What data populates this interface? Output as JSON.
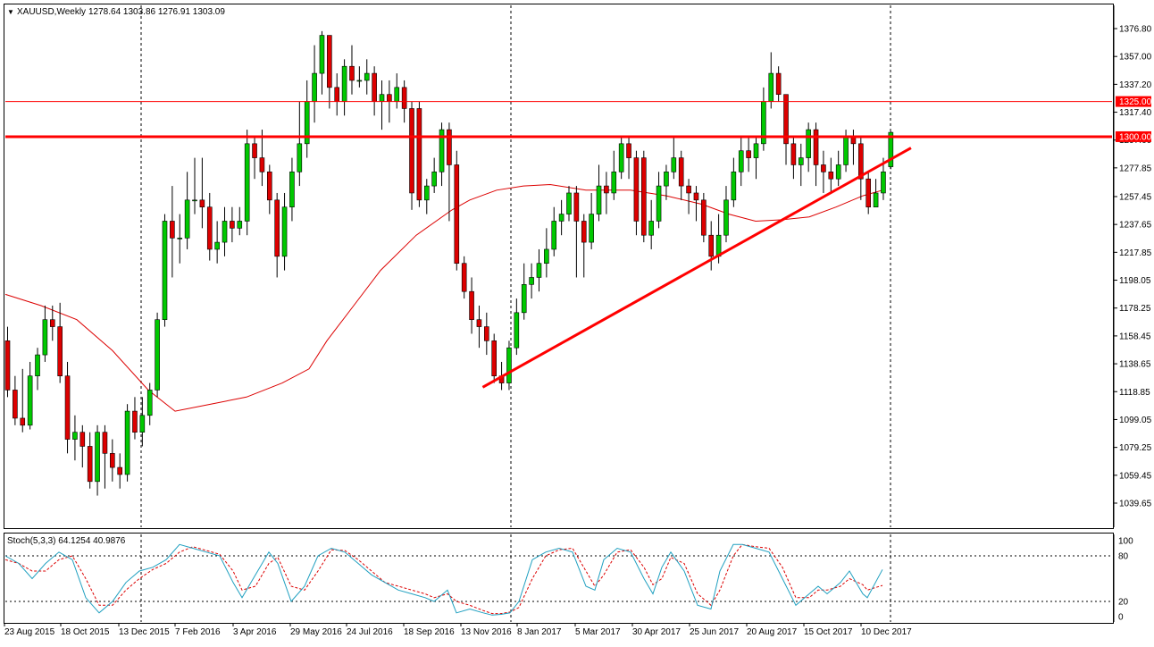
{
  "header": {
    "symbol_tf": "XAUUSD,Weekly",
    "ohlc": "1278.64 1303.86 1276.91 1303.09",
    "dropdown_glyph": "▼"
  },
  "price_panel": {
    "y_ticks": [
      "1376.80",
      "1357.00",
      "1337.20",
      "1317.40",
      "1297.60",
      "1277.85",
      "1257.45",
      "1237.65",
      "1217.85",
      "1198.05",
      "1178.25",
      "1158.45",
      "1138.65",
      "1118.85",
      "1099.05",
      "1079.25",
      "1059.45",
      "1039.65"
    ],
    "level_labels": {
      "upper": "1325.00",
      "main": "1300.00"
    }
  },
  "stoch_panel": {
    "title": "Stoch(5,3,3) 64.1254 40.9876",
    "y_ticks": [
      "100",
      "80",
      "20",
      "0"
    ]
  },
  "time_axis": {
    "labels": [
      "23 Aug 2015",
      "18 Oct 2015",
      "13 Dec 2015",
      "7 Feb 2016",
      "3 Apr 2016",
      "29 May 2016",
      "24 Jul 2016",
      "18 Sep 2016",
      "13 Nov 2016",
      "8 Jan 2017",
      "5 Mar 2017",
      "30 Apr 2017",
      "25 Jun 2017",
      "20 Aug 2017",
      "15 Oct 2017",
      "10 Dec 2017"
    ]
  },
  "colors": {
    "bull": "#00c800",
    "bear": "#dc0000",
    "outline": "#000000",
    "levels": "#ff0000",
    "ma": "#dc0000",
    "stoch_main": "#20a0c0",
    "stoch_signal": "#dc0000",
    "grid": "#000000",
    "axis_text": "#000000",
    "label_bg": "#ff0000",
    "label_text": "#ffffff"
  },
  "chart_data": {
    "type": "candlestick",
    "timeframe": "weekly",
    "x_range": [
      "2015-08-23",
      "2017-12-24"
    ],
    "y_range": [
      1039.65,
      1376.8
    ],
    "horizontal_levels": [
      1325.0,
      1300.0
    ],
    "trendline": {
      "from": {
        "date": "2016-12-04",
        "price": 1122
      },
      "to": {
        "date": "2018-01-28",
        "price": 1292
      }
    },
    "candles": [
      [
        1155,
        1120,
        1165,
        1115
      ],
      [
        1120,
        1100,
        1130,
        1095
      ],
      [
        1100,
        1095,
        1135,
        1090
      ],
      [
        1095,
        1130,
        1140,
        1092
      ],
      [
        1130,
        1145,
        1150,
        1120
      ],
      [
        1145,
        1170,
        1180,
        1140
      ],
      [
        1170,
        1165,
        1180,
        1155
      ],
      [
        1165,
        1130,
        1182,
        1125
      ],
      [
        1130,
        1085,
        1140,
        1075
      ],
      [
        1085,
        1090,
        1102,
        1070
      ],
      [
        1090,
        1080,
        1095,
        1065
      ],
      [
        1080,
        1055,
        1090,
        1050
      ],
      [
        1055,
        1090,
        1095,
        1045
      ],
      [
        1090,
        1075,
        1095,
        1050
      ],
      [
        1075,
        1065,
        1085,
        1055
      ],
      [
        1065,
        1060,
        1075,
        1050
      ],
      [
        1060,
        1105,
        1110,
        1055
      ],
      [
        1105,
        1090,
        1115,
        1085
      ],
      [
        1090,
        1102,
        1115,
        1080
      ],
      [
        1102,
        1120,
        1125,
        1095
      ],
      [
        1120,
        1170,
        1175,
        1115
      ],
      [
        1170,
        1240,
        1245,
        1165
      ],
      [
        1240,
        1228,
        1265,
        1200
      ],
      [
        1228,
        1228,
        1245,
        1210
      ],
      [
        1228,
        1255,
        1275,
        1220
      ],
      [
        1255,
        1255,
        1285,
        1245
      ],
      [
        1255,
        1250,
        1285,
        1235
      ],
      [
        1250,
        1220,
        1260,
        1212
      ],
      [
        1220,
        1225,
        1240,
        1210
      ],
      [
        1225,
        1240,
        1250,
        1215
      ],
      [
        1240,
        1235,
        1250,
        1225
      ],
      [
        1235,
        1240,
        1250,
        1230
      ],
      [
        1240,
        1295,
        1305,
        1230
      ],
      [
        1295,
        1285,
        1300,
        1270
      ],
      [
        1285,
        1275,
        1305,
        1265
      ],
      [
        1275,
        1255,
        1280,
        1245
      ],
      [
        1255,
        1215,
        1260,
        1200
      ],
      [
        1215,
        1250,
        1260,
        1205
      ],
      [
        1250,
        1275,
        1285,
        1240
      ],
      [
        1275,
        1295,
        1325,
        1265
      ],
      [
        1295,
        1325,
        1340,
        1285
      ],
      [
        1325,
        1345,
        1365,
        1310
      ],
      [
        1345,
        1372,
        1375,
        1330
      ],
      [
        1372,
        1335,
        1372,
        1320
      ],
      [
        1335,
        1325,
        1345,
        1315
      ],
      [
        1325,
        1350,
        1355,
        1315
      ],
      [
        1350,
        1340,
        1365,
        1330
      ],
      [
        1340,
        1340,
        1350,
        1335
      ],
      [
        1340,
        1345,
        1355,
        1330
      ],
      [
        1345,
        1325,
        1350,
        1315
      ],
      [
        1325,
        1330,
        1340,
        1305
      ],
      [
        1330,
        1325,
        1340,
        1310
      ],
      [
        1325,
        1335,
        1345,
        1320
      ],
      [
        1335,
        1320,
        1340,
        1310
      ],
      [
        1320,
        1260,
        1325,
        1248
      ],
      [
        1320,
        1255,
        1325,
        1250
      ],
      [
        1255,
        1265,
        1270,
        1245
      ],
      [
        1265,
        1275,
        1285,
        1260
      ],
      [
        1275,
        1305,
        1310,
        1265
      ],
      [
        1305,
        1280,
        1310,
        1240
      ],
      [
        1280,
        1210,
        1290,
        1205
      ],
      [
        1210,
        1190,
        1215,
        1185
      ],
      [
        1190,
        1170,
        1200,
        1160
      ],
      [
        1170,
        1165,
        1180,
        1150
      ],
      [
        1165,
        1155,
        1175,
        1145
      ],
      [
        1155,
        1130,
        1160,
        1125
      ],
      [
        1130,
        1125,
        1140,
        1120
      ],
      [
        1125,
        1150,
        1155,
        1120
      ],
      [
        1150,
        1175,
        1185,
        1145
      ],
      [
        1175,
        1195,
        1210,
        1170
      ],
      [
        1195,
        1200,
        1210,
        1185
      ],
      [
        1200,
        1210,
        1220,
        1190
      ],
      [
        1210,
        1220,
        1235,
        1200
      ],
      [
        1220,
        1240,
        1250,
        1215
      ],
      [
        1240,
        1245,
        1255,
        1230
      ],
      [
        1245,
        1260,
        1265,
        1240
      ],
      [
        1260,
        1240,
        1265,
        1200
      ],
      [
        1240,
        1225,
        1245,
        1200
      ],
      [
        1225,
        1245,
        1260,
        1220
      ],
      [
        1245,
        1265,
        1280,
        1240
      ],
      [
        1265,
        1260,
        1275,
        1245
      ],
      [
        1260,
        1275,
        1290,
        1255
      ],
      [
        1275,
        1295,
        1300,
        1270
      ],
      [
        1295,
        1285,
        1300,
        1270
      ],
      [
        1285,
        1240,
        1290,
        1230
      ],
      [
        1285,
        1230,
        1290,
        1225
      ],
      [
        1230,
        1240,
        1255,
        1220
      ],
      [
        1240,
        1265,
        1275,
        1235
      ],
      [
        1265,
        1275,
        1280,
        1255
      ],
      [
        1275,
        1285,
        1300,
        1270
      ],
      [
        1285,
        1265,
        1290,
        1255
      ],
      [
        1265,
        1260,
        1270,
        1245
      ],
      [
        1260,
        1255,
        1265,
        1240
      ],
      [
        1255,
        1230,
        1260,
        1225
      ],
      [
        1230,
        1215,
        1240,
        1205
      ],
      [
        1215,
        1230,
        1245,
        1210
      ],
      [
        1230,
        1255,
        1265,
        1225
      ],
      [
        1255,
        1275,
        1285,
        1250
      ],
      [
        1275,
        1290,
        1300,
        1265
      ],
      [
        1290,
        1285,
        1300,
        1275
      ],
      [
        1285,
        1295,
        1300,
        1270
      ],
      [
        1295,
        1325,
        1335,
        1290
      ],
      [
        1325,
        1345,
        1360,
        1320
      ],
      [
        1345,
        1330,
        1350,
        1325
      ],
      [
        1330,
        1295,
        1330,
        1280
      ],
      [
        1295,
        1280,
        1300,
        1270
      ],
      [
        1280,
        1285,
        1295,
        1265
      ],
      [
        1285,
        1305,
        1310,
        1275
      ],
      [
        1305,
        1280,
        1310,
        1265
      ],
      [
        1280,
        1275,
        1290,
        1260
      ],
      [
        1275,
        1270,
        1285,
        1260
      ],
      [
        1270,
        1280,
        1290,
        1265
      ],
      [
        1280,
        1300,
        1305,
        1275
      ],
      [
        1300,
        1295,
        1305,
        1280
      ],
      [
        1295,
        1270,
        1300,
        1255
      ],
      [
        1270,
        1250,
        1275,
        1245
      ],
      [
        1250,
        1260,
        1270,
        1250
      ],
      [
        1260,
        1275,
        1285,
        1255
      ],
      [
        1278.64,
        1303.09,
        1303.86,
        1276.91
      ]
    ],
    "ma": [
      [
        0,
        1188
      ],
      [
        40,
        1180
      ],
      [
        80,
        1170
      ],
      [
        120,
        1148
      ],
      [
        160,
        1120
      ],
      [
        190,
        1105
      ],
      [
        230,
        1110
      ],
      [
        270,
        1115
      ],
      [
        310,
        1125
      ],
      [
        340,
        1135
      ],
      [
        360,
        1155
      ],
      [
        390,
        1180
      ],
      [
        420,
        1205
      ],
      [
        460,
        1230
      ],
      [
        500,
        1248
      ],
      [
        520,
        1255
      ],
      [
        550,
        1262
      ],
      [
        580,
        1265
      ],
      [
        610,
        1266
      ],
      [
        650,
        1262
      ],
      [
        700,
        1262
      ],
      [
        740,
        1258
      ],
      [
        780,
        1252
      ],
      [
        810,
        1245
      ],
      [
        840,
        1240
      ],
      [
        870,
        1241
      ],
      [
        900,
        1243
      ],
      [
        930,
        1250
      ],
      [
        960,
        1258
      ],
      [
        982,
        1262
      ]
    ],
    "stoch_k": [
      [
        0,
        80
      ],
      [
        15,
        70
      ],
      [
        30,
        50
      ],
      [
        45,
        70
      ],
      [
        60,
        85
      ],
      [
        75,
        75
      ],
      [
        90,
        25
      ],
      [
        105,
        5
      ],
      [
        120,
        20
      ],
      [
        135,
        45
      ],
      [
        150,
        60
      ],
      [
        165,
        65
      ],
      [
        180,
        75
      ],
      [
        195,
        95
      ],
      [
        210,
        90
      ],
      [
        225,
        85
      ],
      [
        240,
        80
      ],
      [
        255,
        45
      ],
      [
        265,
        25
      ],
      [
        280,
        55
      ],
      [
        295,
        85
      ],
      [
        305,
        70
      ],
      [
        320,
        20
      ],
      [
        335,
        40
      ],
      [
        350,
        80
      ],
      [
        365,
        90
      ],
      [
        380,
        85
      ],
      [
        395,
        70
      ],
      [
        410,
        55
      ],
      [
        425,
        45
      ],
      [
        440,
        35
      ],
      [
        455,
        30
      ],
      [
        470,
        25
      ],
      [
        480,
        20
      ],
      [
        495,
        35
      ],
      [
        505,
        5
      ],
      [
        520,
        10
      ],
      [
        535,
        5
      ],
      [
        545,
        2
      ],
      [
        555,
        3
      ],
      [
        565,
        5
      ],
      [
        575,
        20
      ],
      [
        590,
        75
      ],
      [
        605,
        85
      ],
      [
        620,
        90
      ],
      [
        635,
        85
      ],
      [
        650,
        40
      ],
      [
        660,
        35
      ],
      [
        670,
        75
      ],
      [
        685,
        90
      ],
      [
        700,
        85
      ],
      [
        715,
        50
      ],
      [
        725,
        30
      ],
      [
        735,
        65
      ],
      [
        745,
        85
      ],
      [
        760,
        60
      ],
      [
        775,
        15
      ],
      [
        790,
        10
      ],
      [
        800,
        60
      ],
      [
        815,
        95
      ],
      [
        825,
        95
      ],
      [
        840,
        90
      ],
      [
        855,
        85
      ],
      [
        870,
        50
      ],
      [
        885,
        15
      ],
      [
        900,
        30
      ],
      [
        910,
        40
      ],
      [
        920,
        30
      ],
      [
        935,
        45
      ],
      [
        945,
        60
      ],
      [
        960,
        30
      ],
      [
        965,
        25
      ],
      [
        982,
        62
      ]
    ],
    "stoch_d": [
      [
        0,
        75
      ],
      [
        15,
        70
      ],
      [
        30,
        60
      ],
      [
        45,
        60
      ],
      [
        60,
        75
      ],
      [
        75,
        80
      ],
      [
        90,
        50
      ],
      [
        105,
        15
      ],
      [
        120,
        15
      ],
      [
        135,
        35
      ],
      [
        150,
        50
      ],
      [
        165,
        62
      ],
      [
        180,
        70
      ],
      [
        195,
        85
      ],
      [
        210,
        92
      ],
      [
        225,
        87
      ],
      [
        240,
        82
      ],
      [
        255,
        60
      ],
      [
        265,
        35
      ],
      [
        280,
        40
      ],
      [
        295,
        70
      ],
      [
        305,
        78
      ],
      [
        320,
        40
      ],
      [
        335,
        35
      ],
      [
        350,
        60
      ],
      [
        365,
        88
      ],
      [
        380,
        87
      ],
      [
        395,
        75
      ],
      [
        410,
        60
      ],
      [
        425,
        45
      ],
      [
        440,
        40
      ],
      [
        455,
        35
      ],
      [
        470,
        30
      ],
      [
        480,
        25
      ],
      [
        495,
        30
      ],
      [
        505,
        20
      ],
      [
        520,
        15
      ],
      [
        535,
        8
      ],
      [
        545,
        4
      ],
      [
        555,
        4
      ],
      [
        565,
        6
      ],
      [
        575,
        12
      ],
      [
        590,
        50
      ],
      [
        605,
        80
      ],
      [
        620,
        88
      ],
      [
        635,
        90
      ],
      [
        650,
        60
      ],
      [
        660,
        40
      ],
      [
        670,
        55
      ],
      [
        685,
        85
      ],
      [
        700,
        88
      ],
      [
        715,
        65
      ],
      [
        725,
        42
      ],
      [
        735,
        50
      ],
      [
        745,
        78
      ],
      [
        760,
        70
      ],
      [
        775,
        30
      ],
      [
        790,
        15
      ],
      [
        800,
        35
      ],
      [
        815,
        80
      ],
      [
        825,
        95
      ],
      [
        840,
        92
      ],
      [
        855,
        90
      ],
      [
        870,
        65
      ],
      [
        885,
        25
      ],
      [
        900,
        25
      ],
      [
        910,
        35
      ],
      [
        920,
        35
      ],
      [
        935,
        40
      ],
      [
        945,
        50
      ],
      [
        960,
        42
      ],
      [
        965,
        35
      ],
      [
        982,
        41
      ]
    ]
  }
}
